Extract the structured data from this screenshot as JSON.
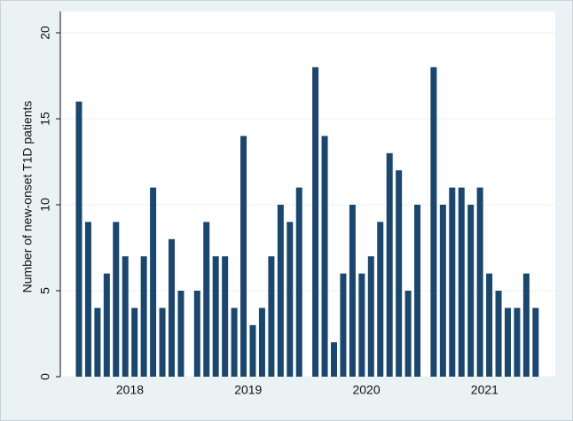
{
  "chart_data": {
    "type": "bar",
    "y_label": "Number of new-onset T1D patients",
    "groups": [
      {
        "name": "2018",
        "values": [
          16,
          9,
          4,
          6,
          9,
          7,
          4,
          7,
          11,
          4,
          8,
          5
        ]
      },
      {
        "name": "2019",
        "values": [
          5,
          9,
          7,
          7,
          4,
          14,
          3,
          4,
          7,
          10,
          9,
          11
        ]
      },
      {
        "name": "2020",
        "values": [
          18,
          14,
          2,
          6,
          10,
          6,
          7,
          9,
          13,
          12,
          5,
          10
        ]
      },
      {
        "name": "2021",
        "values": [
          18,
          10,
          11,
          11,
          10,
          11,
          6,
          5,
          4,
          4,
          6,
          4
        ]
      }
    ],
    "color": "#1a476f",
    "ylim": [
      0,
      20
    ],
    "yticks": [
      0,
      5,
      10,
      15,
      20
    ],
    "grid": true
  }
}
